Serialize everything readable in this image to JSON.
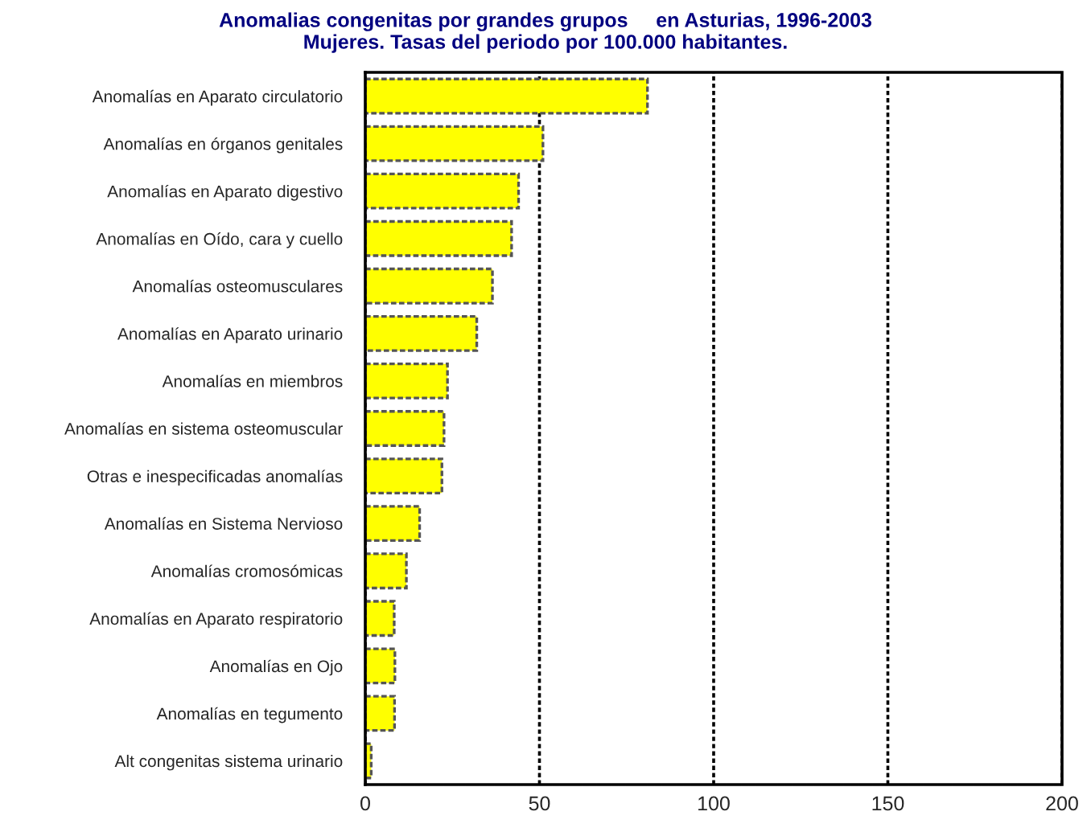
{
  "chart_data": {
    "type": "bar",
    "orientation": "horizontal",
    "title": "Anomalias congenitas por grandes grupos     en Asturias, 1996-2003\nMujeres. Tasas del periodo por 100.000 habitantes.",
    "categories": [
      "Anomalías en Aparato circulatorio",
      "Anomalías en órganos genitales",
      "Anomalías en Aparato digestivo",
      "Anomalías en Oído, cara y cuello",
      "Anomalías osteomusculares",
      "Anomalías en Aparato urinario",
      "Anomalías en miembros",
      "Anomalías en sistema osteomuscular",
      "Otras e inespecificadas anomalías",
      "Anomalías en Sistema Nervioso",
      "Anomalías cromosómicas",
      "Anomalías en Aparato respiratorio",
      "Anomalías en Ojo",
      "Anomalías en tegumento",
      "Alt congenitas sistema urinario"
    ],
    "values": [
      81,
      51,
      44,
      42,
      36.5,
      32,
      23.6,
      22.6,
      22,
      15.6,
      11.8,
      8.3,
      8.5,
      8.4,
      1.7
    ],
    "color": "#ffff00",
    "xlim": [
      0,
      200
    ],
    "xticks": [
      0,
      50,
      100,
      150,
      200
    ],
    "grid": "x"
  }
}
